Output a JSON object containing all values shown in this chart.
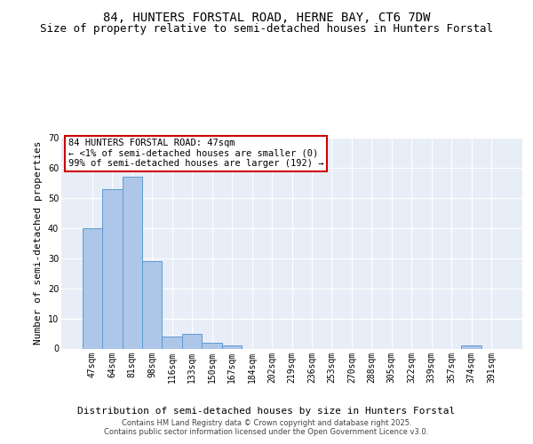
{
  "title": "84, HUNTERS FORSTAL ROAD, HERNE BAY, CT6 7DW",
  "subtitle": "Size of property relative to semi-detached houses in Hunters Forstal",
  "xlabel": "Distribution of semi-detached houses by size in Hunters Forstal",
  "ylabel": "Number of semi-detached properties",
  "categories": [
    "47sqm",
    "64sqm",
    "81sqm",
    "98sqm",
    "116sqm",
    "133sqm",
    "150sqm",
    "167sqm",
    "184sqm",
    "202sqm",
    "219sqm",
    "236sqm",
    "253sqm",
    "270sqm",
    "288sqm",
    "305sqm",
    "322sqm",
    "339sqm",
    "357sqm",
    "374sqm",
    "391sqm"
  ],
  "values": [
    40,
    53,
    57,
    29,
    4,
    5,
    2,
    1,
    0,
    0,
    0,
    0,
    0,
    0,
    0,
    0,
    0,
    0,
    0,
    1,
    0
  ],
  "bar_color": "#aec6e8",
  "bar_edge_color": "#5b9bd5",
  "highlight_bar_edge_color": "#cc0000",
  "ylim": [
    0,
    70
  ],
  "yticks": [
    0,
    10,
    20,
    30,
    40,
    50,
    60,
    70
  ],
  "annotation_line1": "84 HUNTERS FORSTAL ROAD: 47sqm",
  "annotation_line2": "← <1% of semi-detached houses are smaller (0)",
  "annotation_line3": "99% of semi-detached houses are larger (192) →",
  "annotation_box_color": "#cc0000",
  "bg_color": "#e8eef7",
  "footer_line1": "Contains HM Land Registry data © Crown copyright and database right 2025.",
  "footer_line2": "Contains public sector information licensed under the Open Government Licence v3.0.",
  "title_fontsize": 10,
  "subtitle_fontsize": 9,
  "xlabel_fontsize": 8,
  "ylabel_fontsize": 8,
  "tick_fontsize": 7,
  "annotation_fontsize": 7.5,
  "footer_fontsize": 6
}
